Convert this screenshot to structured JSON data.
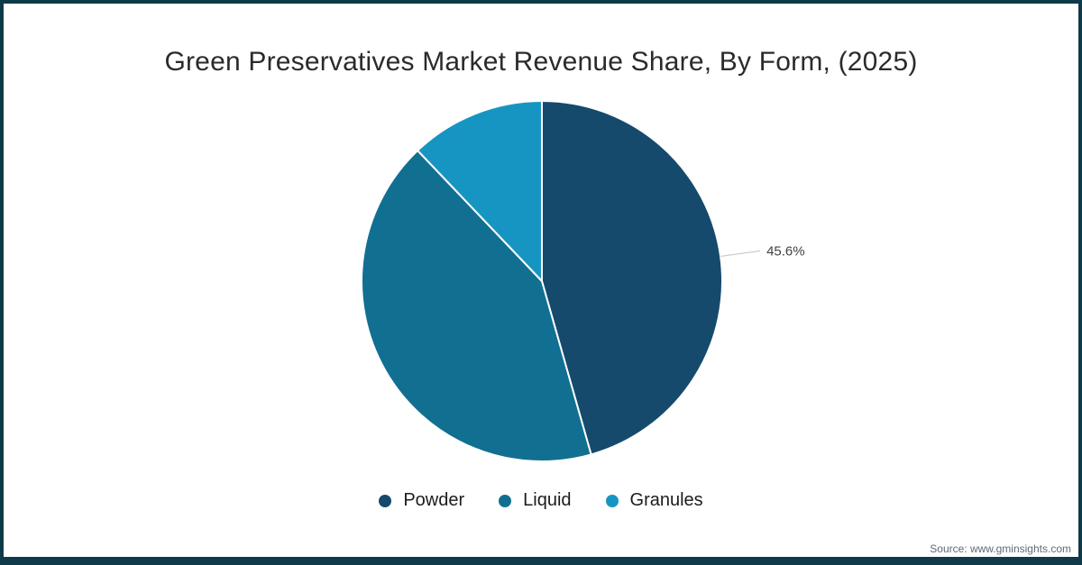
{
  "frame": {
    "border_color": "#0e3a49",
    "background_color": "#ffffff"
  },
  "chart_data": {
    "type": "pie",
    "title": "Green Preservatives Market Revenue Share, By Form, (2025)",
    "categories": [
      "Powder",
      "Liquid",
      "Granules"
    ],
    "values": [
      45.6,
      42.3,
      12.1
    ],
    "colors": [
      "#154a6d",
      "#116f92",
      "#1795c2"
    ],
    "data_labels": [
      "45.6%",
      null,
      null
    ],
    "start_angle_deg": 0,
    "direction": "clockwise",
    "legend_position": "bottom",
    "leader_line_color": "#c9c9c9",
    "label_text_color": "#404040"
  },
  "source": {
    "text": "Source: www.gminsights.com"
  }
}
